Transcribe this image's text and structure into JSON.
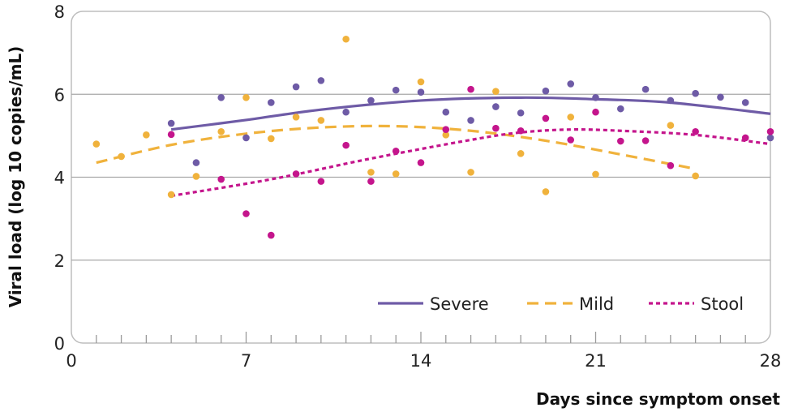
{
  "chart_data": {
    "type": "scatter",
    "xlabel": "Days since symptom onset",
    "ylabel": "Viral load (log 10 copies/mL)",
    "xlim": [
      0,
      28
    ],
    "ylim": [
      0,
      8
    ],
    "xticks": [
      0,
      7,
      14,
      21,
      28
    ],
    "yticks": [
      0,
      2,
      4,
      6,
      8
    ],
    "grid": "horizontal",
    "legend_position": "bottom-right",
    "series": [
      {
        "name": "Severe",
        "color": "#6e5ba6",
        "line_style": "solid",
        "points": [
          [
            4,
            5.3
          ],
          [
            5,
            4.35
          ],
          [
            6,
            5.92
          ],
          [
            7,
            4.95
          ],
          [
            8,
            5.8
          ],
          [
            9,
            6.18
          ],
          [
            10,
            6.33
          ],
          [
            11,
            5.57
          ],
          [
            12,
            5.85
          ],
          [
            13,
            6.1
          ],
          [
            14,
            6.05
          ],
          [
            15,
            5.57
          ],
          [
            16,
            5.37
          ],
          [
            17,
            5.7
          ],
          [
            18,
            5.55
          ],
          [
            19,
            6.08
          ],
          [
            20,
            6.25
          ],
          [
            21,
            5.92
          ],
          [
            22,
            5.65
          ],
          [
            23,
            6.12
          ],
          [
            24,
            5.85
          ],
          [
            25,
            6.02
          ],
          [
            26,
            5.93
          ],
          [
            27,
            5.8
          ],
          [
            28,
            4.95
          ]
        ],
        "trend": [
          [
            4,
            5.15
          ],
          [
            7,
            5.38
          ],
          [
            10,
            5.63
          ],
          [
            14,
            5.85
          ],
          [
            18,
            5.92
          ],
          [
            21,
            5.88
          ],
          [
            24,
            5.8
          ],
          [
            28,
            5.53
          ]
        ]
      },
      {
        "name": "Mild",
        "color": "#f0b23c",
        "line_style": "dashed",
        "points": [
          [
            1,
            4.8
          ],
          [
            2,
            4.5
          ],
          [
            3,
            5.02
          ],
          [
            4,
            3.58
          ],
          [
            5,
            4.02
          ],
          [
            6,
            5.1
          ],
          [
            7,
            5.92
          ],
          [
            8,
            4.93
          ],
          [
            9,
            5.45
          ],
          [
            10,
            5.37
          ],
          [
            11,
            7.33
          ],
          [
            12,
            4.12
          ],
          [
            13,
            4.08
          ],
          [
            14,
            6.3
          ],
          [
            15,
            5.02
          ],
          [
            16,
            4.12
          ],
          [
            17,
            6.07
          ],
          [
            18,
            4.57
          ],
          [
            19,
            3.65
          ],
          [
            20,
            5.45
          ],
          [
            21,
            4.07
          ],
          [
            24,
            5.25
          ],
          [
            25,
            4.03
          ]
        ],
        "trend": [
          [
            1,
            4.35
          ],
          [
            4,
            4.78
          ],
          [
            7,
            5.05
          ],
          [
            10,
            5.2
          ],
          [
            13,
            5.23
          ],
          [
            16,
            5.12
          ],
          [
            19,
            4.88
          ],
          [
            22,
            4.55
          ],
          [
            25,
            4.2
          ]
        ]
      },
      {
        "name": "Stool",
        "color": "#c4158c",
        "line_style": "dotted",
        "points": [
          [
            4,
            5.03
          ],
          [
            6,
            3.95
          ],
          [
            7,
            3.12
          ],
          [
            8,
            2.6
          ],
          [
            9,
            4.08
          ],
          [
            10,
            3.9
          ],
          [
            11,
            4.77
          ],
          [
            12,
            3.9
          ],
          [
            13,
            4.63
          ],
          [
            14,
            4.35
          ],
          [
            15,
            5.15
          ],
          [
            16,
            6.12
          ],
          [
            17,
            5.18
          ],
          [
            18,
            5.12
          ],
          [
            19,
            5.42
          ],
          [
            20,
            4.9
          ],
          [
            21,
            5.57
          ],
          [
            22,
            4.87
          ],
          [
            23,
            4.88
          ],
          [
            24,
            4.28
          ],
          [
            25,
            5.1
          ],
          [
            27,
            4.95
          ],
          [
            28,
            5.1
          ]
        ],
        "trend": [
          [
            4,
            3.55
          ],
          [
            8,
            3.95
          ],
          [
            12,
            4.45
          ],
          [
            16,
            4.9
          ],
          [
            18,
            5.08
          ],
          [
            20,
            5.15
          ],
          [
            22,
            5.12
          ],
          [
            25,
            5.02
          ],
          [
            28,
            4.8
          ]
        ]
      }
    ]
  }
}
